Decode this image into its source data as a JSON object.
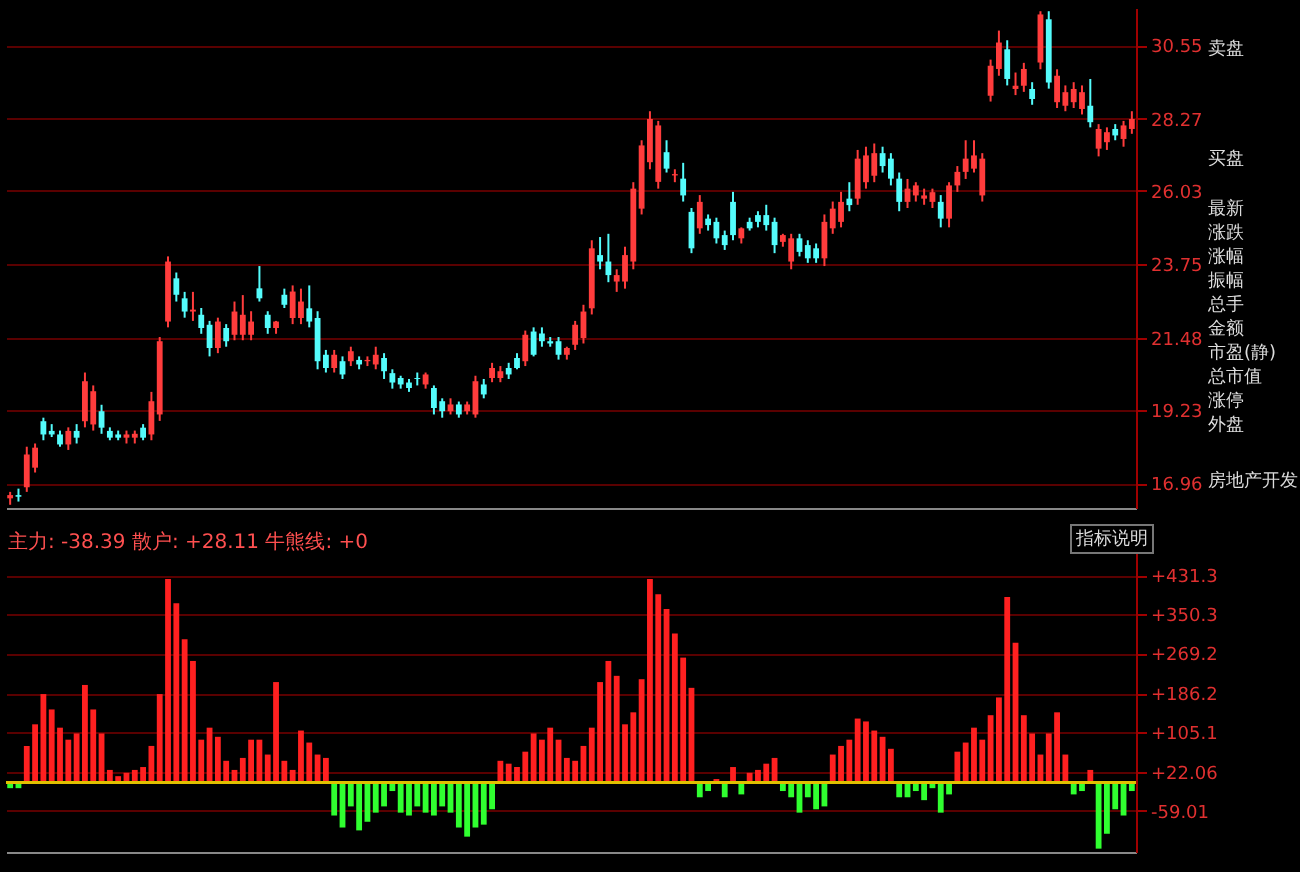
{
  "chart_data": [
    {
      "type": "candlestick",
      "categories": [
        null,
        null,
        null,
        null,
        null,
        null,
        null,
        null,
        null,
        null,
        null,
        null,
        null,
        null,
        null,
        null,
        null,
        null,
        null,
        null,
        null,
        null,
        null,
        null,
        null,
        null,
        null,
        null,
        null,
        null,
        null,
        null,
        null,
        null,
        null,
        null,
        null,
        null,
        null,
        null,
        null,
        null,
        null,
        null,
        null,
        null,
        null,
        null,
        null,
        null,
        null,
        null,
        null,
        null,
        null,
        null,
        null,
        null,
        null,
        null,
        null,
        null,
        null,
        null,
        null,
        null,
        null,
        null,
        null,
        null,
        null,
        null,
        null,
        null,
        null,
        null,
        null,
        null,
        null,
        null,
        null,
        null,
        null,
        null,
        null,
        null,
        null,
        null,
        null,
        null,
        null,
        null,
        null,
        null,
        null,
        null,
        null,
        null,
        null,
        null,
        null,
        null,
        null,
        null,
        null,
        null,
        null,
        null,
        null,
        null,
        null,
        null,
        null,
        null,
        null,
        null,
        null,
        null,
        null,
        null,
        null,
        null,
        null,
        null,
        null,
        null,
        null,
        null,
        null,
        null,
        null,
        null,
        null,
        null,
        null,
        null
      ],
      "colors": [
        "#ff3c3c",
        "#54fcfc",
        "#ff3c3c",
        "#ff3c3c",
        "#54fcfc",
        "#54fcfc",
        "#54fcfc",
        "#ff3c3c",
        "#54fcfc",
        "#ff3c3c",
        "#ff3c3c",
        "#54fcfc",
        "#54fcfc",
        "#54fcfc",
        "#ff3c3c",
        "#ff3c3c",
        "#54fcfc",
        "#ff3c3c",
        "#ff3c3c",
        "#ff3c3c",
        "#54fcfc",
        "#54fcfc",
        "#ff3c3c",
        "#54fcfc",
        "#54fcfc",
        "#ff3c3c",
        "#54fcfc",
        "#ff3c3c",
        "#ff3c3c",
        "#ff3c3c",
        "#54fcfc",
        "#54fcfc",
        "#ff3c3c",
        "#54fcfc",
        "#ff3c3c",
        "#ff3c3c",
        "#54fcfc",
        "#54fcfc",
        "#54fcfc",
        "#ff3c3c",
        "#54fcfc",
        "#ff3c3c",
        "#54fcfc",
        "#ff3c3c",
        "#ff3c3c",
        "#54fcfc",
        "#54fcfc",
        "#54fcfc",
        "#54fcfc",
        "#54fcfc",
        "#ff3c3c",
        "#54fcfc",
        "#54fcfc",
        "#ff3c3c",
        "#54fcfc",
        "#ff3c3c",
        "#ff3c3c",
        "#54fcfc",
        "#ff3c3c",
        "#ff3c3c",
        "#54fcfc",
        "#54fcfc",
        "#ff3c3c",
        "#54fcfc",
        "#54fcfc",
        "#54fcfc",
        "#54fcfc",
        "#ff3c3c",
        "#ff3c3c",
        "#ff3c3c",
        "#ff3c3c",
        "#54fcfc",
        "#54fcfc",
        "#ff3c3c",
        "#ff3c3c",
        "#ff3c3c",
        "#ff3c3c",
        "#ff3c3c",
        "#ff3c3c",
        "#54fcfc",
        "#ff3c3c",
        "#54fcfc",
        "#54fcfc",
        "#ff3c3c",
        "#54fcfc",
        "#54fcfc",
        "#54fcfc",
        "#54fcfc",
        "#ff3c3c",
        "#54fcfc",
        "#54fcfc",
        "#54fcfc",
        "#54fcfc",
        "#ff3c3c",
        "#ff3c3c",
        "#54fcfc",
        "#54fcfc",
        "#54fcfc",
        "#ff3c3c",
        "#ff3c3c",
        "#ff3c3c",
        "#54fcfc",
        "#ff3c3c",
        "#ff3c3c",
        "#ff3c3c",
        "#54fcfc",
        "#54fcfc",
        "#54fcfc",
        "#ff3c3c",
        "#ff3c3c",
        "#ff3c3c",
        "#ff3c3c",
        "#54fcfc",
        "#ff3c3c",
        "#ff3c3c",
        "#ff3c3c",
        "#ff3c3c",
        "#ff3c3c",
        "#ff3c3c",
        "#ff3c3c",
        "#54fcfc",
        "#ff3c3c",
        "#ff3c3c",
        "#54fcfc",
        "#ff3c3c",
        "#54fcfc",
        "#ff3c3c",
        "#ff3c3c",
        "#ff3c3c",
        "#ff3c3c",
        "#54fcfc",
        "#ff3c3c",
        "#ff3c3c",
        "#54fcfc",
        "#ff3c3c",
        "#ff3c3c"
      ],
      "ohlc": [
        [
          16.5,
          16.7,
          16.3,
          16.6
        ],
        [
          16.6,
          16.8,
          16.4,
          16.55
        ],
        [
          16.84,
          18.1,
          16.7,
          17.86
        ],
        [
          17.45,
          18.2,
          17.3,
          18.07
        ],
        [
          18.89,
          19.0,
          18.3,
          18.48
        ],
        [
          18.59,
          18.8,
          18.4,
          18.48
        ],
        [
          18.48,
          18.6,
          18.1,
          18.17
        ],
        [
          18.17,
          18.7,
          18.0,
          18.59
        ],
        [
          18.59,
          18.8,
          18.2,
          18.38
        ],
        [
          18.89,
          20.4,
          18.7,
          20.13
        ],
        [
          18.79,
          20.0,
          18.6,
          19.82
        ],
        [
          19.2,
          19.4,
          18.5,
          18.69
        ],
        [
          18.59,
          18.7,
          18.3,
          18.38
        ],
        [
          18.48,
          18.6,
          18.3,
          18.38
        ],
        [
          18.38,
          18.6,
          18.2,
          18.48
        ],
        [
          18.38,
          18.6,
          18.2,
          18.5
        ],
        [
          18.69,
          18.8,
          18.3,
          18.38
        ],
        [
          18.48,
          19.8,
          18.3,
          19.51
        ],
        [
          19.1,
          21.5,
          18.9,
          21.37
        ],
        [
          21.98,
          24.0,
          21.8,
          23.84
        ],
        [
          23.32,
          23.5,
          22.6,
          22.81
        ],
        [
          22.7,
          22.9,
          22.1,
          22.29
        ],
        [
          22.29,
          22.9,
          22.0,
          22.35
        ],
        [
          22.19,
          22.4,
          21.6,
          21.78
        ],
        [
          21.88,
          22.0,
          20.9,
          21.16
        ],
        [
          21.16,
          22.1,
          21.0,
          21.98
        ],
        [
          21.78,
          21.9,
          21.2,
          21.37
        ],
        [
          21.57,
          22.6,
          21.4,
          22.29
        ],
        [
          21.57,
          22.8,
          21.4,
          22.19
        ],
        [
          21.57,
          22.3,
          21.4,
          21.98
        ],
        [
          23.01,
          23.7,
          22.6,
          22.7
        ],
        [
          22.19,
          22.3,
          21.6,
          21.78
        ],
        [
          21.78,
          22.0,
          21.6,
          21.98
        ],
        [
          22.81,
          23.0,
          22.4,
          22.5
        ],
        [
          22.09,
          23.1,
          21.9,
          22.91
        ],
        [
          22.09,
          23.0,
          21.9,
          22.6
        ],
        [
          22.39,
          23.1,
          21.8,
          21.98
        ],
        [
          22.09,
          22.3,
          20.5,
          20.75
        ],
        [
          20.95,
          21.1,
          20.4,
          20.54
        ],
        [
          20.54,
          21.1,
          20.4,
          20.95
        ],
        [
          20.75,
          20.9,
          20.2,
          20.34
        ],
        [
          20.75,
          21.2,
          20.6,
          21.06
        ],
        [
          20.79,
          20.9,
          20.5,
          20.65
        ],
        [
          20.75,
          20.9,
          20.6,
          20.79
        ],
        [
          20.65,
          21.2,
          20.5,
          20.95
        ],
        [
          20.85,
          21.0,
          20.2,
          20.44
        ],
        [
          20.38,
          20.5,
          19.9,
          20.09
        ],
        [
          20.23,
          20.3,
          19.9,
          20.03
        ],
        [
          20.09,
          20.2,
          19.8,
          19.92
        ],
        [
          20.23,
          20.4,
          20.0,
          20.2
        ],
        [
          20.03,
          20.4,
          19.9,
          20.34
        ],
        [
          19.92,
          20.0,
          19.1,
          19.3
        ],
        [
          19.51,
          19.6,
          19.0,
          19.2
        ],
        [
          19.2,
          19.6,
          19.1,
          19.41
        ],
        [
          19.41,
          19.5,
          19.0,
          19.1
        ],
        [
          19.2,
          19.5,
          19.1,
          19.41
        ],
        [
          19.1,
          20.3,
          19.0,
          20.13
        ],
        [
          20.03,
          20.2,
          19.6,
          19.72
        ],
        [
          20.23,
          20.7,
          20.1,
          20.54
        ],
        [
          20.23,
          20.6,
          20.1,
          20.44
        ],
        [
          20.54,
          20.7,
          20.2,
          20.34
        ],
        [
          20.85,
          21.0,
          20.5,
          20.54
        ],
        [
          20.75,
          21.7,
          20.6,
          21.57
        ],
        [
          21.67,
          21.8,
          20.9,
          20.95
        ],
        [
          21.61,
          21.8,
          21.2,
          21.37
        ],
        [
          21.37,
          21.5,
          21.2,
          21.3
        ],
        [
          21.37,
          21.5,
          20.8,
          20.95
        ],
        [
          20.95,
          21.2,
          20.8,
          21.16
        ],
        [
          21.26,
          22.0,
          21.1,
          21.88
        ],
        [
          21.47,
          22.5,
          21.3,
          22.29
        ],
        [
          22.39,
          24.5,
          22.2,
          24.25
        ],
        [
          24.04,
          24.6,
          23.6,
          23.84
        ],
        [
          23.84,
          24.7,
          23.2,
          23.42
        ],
        [
          23.22,
          23.6,
          22.9,
          23.42
        ],
        [
          23.22,
          24.3,
          23.0,
          24.04
        ],
        [
          23.84,
          26.3,
          23.6,
          26.1
        ],
        [
          25.48,
          27.6,
          25.3,
          27.44
        ],
        [
          26.92,
          28.5,
          26.7,
          28.26
        ],
        [
          26.31,
          28.2,
          26.1,
          28.06
        ],
        [
          27.23,
          27.6,
          26.6,
          26.72
        ],
        [
          26.51,
          26.7,
          26.3,
          26.55
        ],
        [
          26.41,
          26.9,
          25.7,
          25.89
        ],
        [
          25.38,
          25.5,
          24.1,
          24.25
        ],
        [
          24.87,
          25.9,
          24.7,
          25.69
        ],
        [
          25.17,
          25.3,
          24.8,
          24.97
        ],
        [
          25.07,
          25.2,
          24.4,
          24.56
        ],
        [
          24.66,
          24.8,
          24.2,
          24.35
        ],
        [
          25.69,
          26.0,
          24.5,
          24.66
        ],
        [
          24.56,
          24.9,
          24.4,
          24.87
        ],
        [
          25.07,
          25.2,
          24.8,
          24.87
        ],
        [
          25.28,
          25.4,
          24.9,
          25.07
        ],
        [
          25.28,
          25.6,
          24.8,
          24.97
        ],
        [
          25.07,
          25.2,
          24.1,
          24.35
        ],
        [
          24.45,
          24.7,
          24.3,
          24.66
        ],
        [
          23.84,
          24.7,
          23.6,
          24.56
        ],
        [
          24.56,
          24.7,
          24.0,
          24.14
        ],
        [
          24.35,
          24.5,
          23.8,
          23.94
        ],
        [
          24.25,
          24.4,
          23.8,
          23.94
        ],
        [
          23.94,
          25.3,
          23.7,
          25.07
        ],
        [
          24.87,
          25.7,
          24.7,
          25.48
        ],
        [
          25.07,
          26.0,
          24.9,
          25.69
        ],
        [
          25.79,
          26.3,
          25.4,
          25.59
        ],
        [
          25.79,
          27.3,
          25.6,
          27.03
        ],
        [
          26.3,
          27.4,
          26.1,
          27.13
        ],
        [
          26.5,
          27.5,
          26.3,
          27.2
        ],
        [
          27.2,
          27.4,
          26.6,
          26.8
        ],
        [
          27.03,
          27.2,
          26.2,
          26.41
        ],
        [
          26.41,
          26.6,
          25.4,
          25.69
        ],
        [
          25.69,
          26.4,
          25.5,
          26.1
        ],
        [
          25.89,
          26.3,
          25.7,
          26.2
        ],
        [
          25.79,
          26.1,
          25.6,
          25.89
        ],
        [
          25.69,
          26.1,
          25.5,
          25.99
        ],
        [
          25.69,
          25.9,
          24.9,
          25.17
        ],
        [
          25.17,
          26.3,
          24.9,
          26.2
        ],
        [
          26.2,
          26.8,
          26.0,
          26.62
        ],
        [
          26.62,
          27.6,
          26.4,
          27.03
        ],
        [
          26.72,
          27.6,
          26.6,
          27.13
        ],
        [
          25.89,
          27.2,
          25.7,
          27.03
        ],
        [
          28.98,
          30.1,
          28.8,
          29.91
        ],
        [
          29.81,
          31.0,
          29.6,
          30.63
        ],
        [
          30.42,
          30.7,
          29.3,
          29.5
        ],
        [
          29.19,
          29.7,
          29.0,
          29.29
        ],
        [
          29.29,
          30.0,
          29.1,
          29.81
        ],
        [
          29.19,
          29.4,
          28.7,
          28.88
        ],
        [
          30.01,
          31.6,
          29.8,
          31.5
        ],
        [
          31.35,
          31.6,
          29.2,
          29.39
        ],
        [
          28.78,
          29.8,
          28.6,
          29.6
        ],
        [
          28.67,
          29.3,
          28.5,
          29.09
        ],
        [
          28.78,
          29.4,
          28.6,
          29.19
        ],
        [
          28.57,
          29.3,
          28.4,
          29.09
        ],
        [
          28.67,
          29.5,
          28.0,
          28.16
        ],
        [
          27.34,
          28.1,
          27.1,
          27.95
        ],
        [
          27.54,
          28.0,
          27.3,
          27.85
        ],
        [
          27.95,
          28.1,
          27.6,
          27.75
        ],
        [
          27.64,
          28.2,
          27.4,
          28.06
        ],
        [
          27.95,
          28.5,
          27.8,
          28.26
        ]
      ],
      "ylim": [
        16.2,
        31.7
      ],
      "yticks": [
        16.96,
        19.23,
        21.48,
        23.75,
        26.03,
        28.27,
        30.55
      ],
      "grid": "y",
      "annotations": [
        "卖盘",
        "买盘",
        "最新",
        "涨跌",
        "涨幅",
        "振幅",
        "总手",
        "金额",
        "市盈(静)",
        "总市值",
        "涨停",
        "外盘",
        "房地产开发"
      ]
    },
    {
      "type": "bar",
      "categories": [
        null,
        null,
        null,
        null,
        null,
        null,
        null,
        null,
        null,
        null,
        null,
        null,
        null,
        null,
        null,
        null,
        null,
        null,
        null,
        null,
        null,
        null,
        null,
        null,
        null,
        null,
        null,
        null,
        null,
        null,
        null,
        null,
        null,
        null,
        null,
        null,
        null,
        null,
        null,
        null,
        null,
        null,
        null,
        null,
        null,
        null,
        null,
        null,
        null,
        null,
        null,
        null,
        null,
        null,
        null,
        null,
        null,
        null,
        null,
        null,
        null,
        null,
        null,
        null,
        null,
        null,
        null,
        null,
        null,
        null,
        null,
        null,
        null,
        null,
        null,
        null,
        null,
        null,
        null,
        null,
        null,
        null,
        null,
        null,
        null,
        null,
        null,
        null,
        null,
        null,
        null,
        null,
        null,
        null,
        null,
        null,
        null,
        null,
        null,
        null,
        null,
        null,
        null,
        null,
        null,
        null,
        null,
        null,
        null,
        null,
        null,
        null,
        null,
        null,
        null,
        null,
        null,
        null,
        null,
        null,
        null,
        null,
        null,
        null,
        null,
        null,
        null,
        null,
        null,
        null,
        null,
        null,
        null,
        null,
        null,
        null
      ],
      "series": [
        {
          "color": "#ff2020",
          "values": [
            null,
            null,
            76,
            121,
            184,
            152,
            114,
            89,
            102,
            203,
            152,
            102,
            26,
            13,
            20,
            26,
            32,
            76,
            184,
            424,
            373,
            298,
            253,
            89,
            114,
            95,
            45,
            26,
            51,
            89,
            89,
            58,
            209,
            45,
            26,
            108,
            83,
            58,
            51,
            null,
            null,
            null,
            null,
            null,
            null,
            null,
            null,
            null,
            null,
            null,
            null,
            null,
            null,
            null,
            null,
            null,
            null,
            null,
            null,
            45,
            39,
            32,
            64,
            102,
            89,
            114,
            89,
            51,
            45,
            76,
            114,
            209,
            253,
            222,
            121,
            146,
            215,
            424,
            392,
            361,
            310,
            260,
            197,
            null,
            null,
            7,
            null,
            32,
            null,
            20,
            26,
            39,
            51,
            null,
            null,
            null,
            null,
            null,
            null,
            58,
            76,
            89,
            133,
            127,
            108,
            95,
            70,
            null,
            null,
            null,
            null,
            null,
            null,
            null,
            64,
            83,
            114,
            89,
            140,
            177,
            386,
            291,
            140,
            102,
            58,
            102,
            146,
            58,
            null,
            null,
            26,
            null,
            null,
            null,
            null,
            null
          ]
        },
        {
          "color": "#30ff30",
          "values": [
            -12,
            -12,
            null,
            null,
            null,
            null,
            null,
            null,
            null,
            null,
            null,
            null,
            null,
            null,
            null,
            null,
            null,
            null,
            null,
            null,
            null,
            null,
            null,
            null,
            null,
            null,
            null,
            null,
            null,
            null,
            null,
            null,
            null,
            null,
            null,
            null,
            null,
            null,
            null,
            -69,
            -94,
            -50,
            -100,
            -82,
            -63,
            -50,
            -18,
            -63,
            -69,
            -50,
            -63,
            -69,
            -50,
            -63,
            -94,
            -113,
            -94,
            -88,
            -56,
            null,
            null,
            null,
            null,
            null,
            null,
            null,
            null,
            null,
            null,
            null,
            null,
            null,
            null,
            null,
            null,
            null,
            null,
            null,
            null,
            null,
            null,
            null,
            null,
            -31,
            -18,
            null,
            -31,
            null,
            -25,
            null,
            null,
            null,
            null,
            -18,
            -31,
            -63,
            -31,
            -56,
            -50,
            null,
            null,
            null,
            null,
            null,
            null,
            null,
            null,
            -31,
            -31,
            -18,
            -37,
            -12,
            -63,
            -25,
            null,
            null,
            null,
            null,
            null,
            null,
            null,
            null,
            null,
            null,
            null,
            null,
            null,
            null,
            -25,
            -18,
            null,
            -138,
            -107,
            -56,
            -69,
            -18
          ]
        }
      ],
      "ylim": [
        -145,
        480
      ],
      "yticks": [
        {
          "value": 431.3,
          "label": "+431.3"
        },
        {
          "value": 350.3,
          "label": "+350.3"
        },
        {
          "value": 269.2,
          "label": "+269.2"
        },
        {
          "value": 186.2,
          "label": "+186.2"
        },
        {
          "value": 105.1,
          "label": "+105.1"
        },
        {
          "value": 22.06,
          "label": "+22.06"
        },
        -59.01
      ],
      "grid": "y",
      "ref_lines": [
        {
          "axis": "y",
          "value": 0,
          "color": "#e0c000"
        }
      ],
      "annotations": [
        "主力: -38.39  散户: +28.11  牛熊线: +0",
        "指标说明"
      ]
    }
  ]
}
